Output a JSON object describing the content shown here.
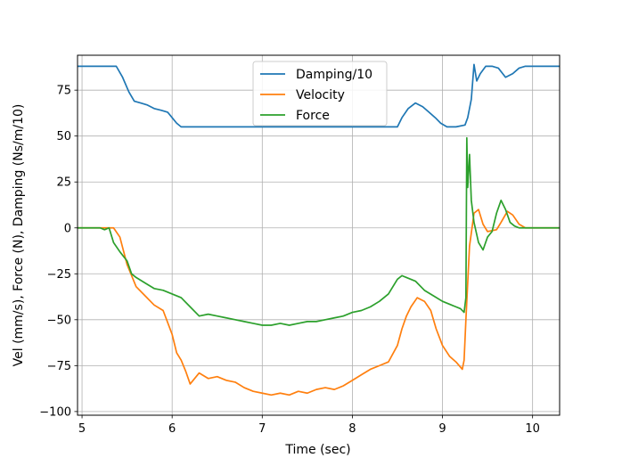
{
  "chart_data": {
    "type": "line",
    "xlabel": "Time (sec)",
    "ylabel": "Vel (mm/s), Force (N), Damping (Ns/m/10)",
    "xlim": [
      4.95,
      10.3
    ],
    "ylim": [
      -102,
      94
    ],
    "xticks": [
      5,
      6,
      7,
      8,
      9,
      10
    ],
    "yticks": [
      -100,
      -75,
      -50,
      -25,
      0,
      25,
      50,
      75
    ],
    "grid": true,
    "legend_position": "top-center",
    "series": [
      {
        "name": "Damping/10",
        "color": "#1f77b4",
        "points": [
          [
            4.95,
            88
          ],
          [
            5.1,
            88
          ],
          [
            5.25,
            88
          ],
          [
            5.38,
            88
          ],
          [
            5.45,
            82
          ],
          [
            5.52,
            74
          ],
          [
            5.58,
            69
          ],
          [
            5.65,
            68
          ],
          [
            5.72,
            67
          ],
          [
            5.8,
            65
          ],
          [
            5.88,
            64
          ],
          [
            5.95,
            63
          ],
          [
            6.0,
            60
          ],
          [
            6.05,
            57
          ],
          [
            6.1,
            55
          ],
          [
            6.2,
            55
          ],
          [
            6.5,
            55
          ],
          [
            7.0,
            55
          ],
          [
            7.5,
            55
          ],
          [
            8.0,
            55
          ],
          [
            8.3,
            55
          ],
          [
            8.5,
            55
          ],
          [
            8.55,
            60
          ],
          [
            8.62,
            65
          ],
          [
            8.7,
            68
          ],
          [
            8.78,
            66
          ],
          [
            8.85,
            63
          ],
          [
            8.92,
            60
          ],
          [
            8.98,
            57
          ],
          [
            9.05,
            55
          ],
          [
            9.15,
            55
          ],
          [
            9.25,
            56
          ],
          [
            9.28,
            60
          ],
          [
            9.32,
            70
          ],
          [
            9.35,
            89
          ],
          [
            9.38,
            80
          ],
          [
            9.42,
            84
          ],
          [
            9.48,
            88
          ],
          [
            9.55,
            88
          ],
          [
            9.62,
            87
          ],
          [
            9.7,
            82
          ],
          [
            9.78,
            84
          ],
          [
            9.85,
            87
          ],
          [
            9.92,
            88
          ],
          [
            10.3,
            88
          ]
        ]
      },
      {
        "name": "Velocity",
        "color": "#ff7f0e",
        "points": [
          [
            4.95,
            0
          ],
          [
            5.2,
            0
          ],
          [
            5.35,
            0
          ],
          [
            5.42,
            -5
          ],
          [
            5.5,
            -20
          ],
          [
            5.6,
            -32
          ],
          [
            5.7,
            -37
          ],
          [
            5.8,
            -42
          ],
          [
            5.9,
            -45
          ],
          [
            6.0,
            -58
          ],
          [
            6.05,
            -68
          ],
          [
            6.1,
            -72
          ],
          [
            6.15,
            -78
          ],
          [
            6.2,
            -85
          ],
          [
            6.3,
            -79
          ],
          [
            6.4,
            -82
          ],
          [
            6.5,
            -81
          ],
          [
            6.6,
            -83
          ],
          [
            6.7,
            -84
          ],
          [
            6.8,
            -87
          ],
          [
            6.9,
            -89
          ],
          [
            7.0,
            -90
          ],
          [
            7.1,
            -91
          ],
          [
            7.2,
            -90
          ],
          [
            7.3,
            -91
          ],
          [
            7.4,
            -89
          ],
          [
            7.5,
            -90
          ],
          [
            7.6,
            -88
          ],
          [
            7.7,
            -87
          ],
          [
            7.8,
            -88
          ],
          [
            7.9,
            -86
          ],
          [
            8.0,
            -83
          ],
          [
            8.1,
            -80
          ],
          [
            8.2,
            -77
          ],
          [
            8.3,
            -75
          ],
          [
            8.4,
            -73
          ],
          [
            8.5,
            -64
          ],
          [
            8.55,
            -55
          ],
          [
            8.6,
            -48
          ],
          [
            8.65,
            -43
          ],
          [
            8.72,
            -38
          ],
          [
            8.8,
            -40
          ],
          [
            8.87,
            -45
          ],
          [
            8.93,
            -55
          ],
          [
            9.0,
            -64
          ],
          [
            9.08,
            -70
          ],
          [
            9.15,
            -73
          ],
          [
            9.22,
            -77
          ],
          [
            9.24,
            -72
          ],
          [
            9.26,
            -50
          ],
          [
            9.3,
            -10
          ],
          [
            9.35,
            8
          ],
          [
            9.4,
            10
          ],
          [
            9.45,
            2
          ],
          [
            9.5,
            -2
          ],
          [
            9.6,
            -1
          ],
          [
            9.65,
            3
          ],
          [
            9.72,
            9
          ],
          [
            9.78,
            7
          ],
          [
            9.85,
            2
          ],
          [
            9.92,
            0
          ],
          [
            10.3,
            0
          ]
        ]
      },
      {
        "name": "Force",
        "color": "#2ca02c",
        "points": [
          [
            4.95,
            0
          ],
          [
            5.2,
            0
          ],
          [
            5.25,
            -1
          ],
          [
            5.3,
            0
          ],
          [
            5.35,
            -8
          ],
          [
            5.42,
            -13
          ],
          [
            5.5,
            -18
          ],
          [
            5.55,
            -25
          ],
          [
            5.6,
            -27
          ],
          [
            5.7,
            -30
          ],
          [
            5.8,
            -33
          ],
          [
            5.9,
            -34
          ],
          [
            6.0,
            -36
          ],
          [
            6.1,
            -38
          ],
          [
            6.2,
            -43
          ],
          [
            6.3,
            -48
          ],
          [
            6.4,
            -47
          ],
          [
            6.5,
            -48
          ],
          [
            6.6,
            -49
          ],
          [
            6.7,
            -50
          ],
          [
            6.8,
            -51
          ],
          [
            6.9,
            -52
          ],
          [
            7.0,
            -53
          ],
          [
            7.1,
            -53
          ],
          [
            7.2,
            -52
          ],
          [
            7.3,
            -53
          ],
          [
            7.4,
            -52
          ],
          [
            7.5,
            -51
          ],
          [
            7.6,
            -51
          ],
          [
            7.7,
            -50
          ],
          [
            7.8,
            -49
          ],
          [
            7.9,
            -48
          ],
          [
            8.0,
            -46
          ],
          [
            8.1,
            -45
          ],
          [
            8.2,
            -43
          ],
          [
            8.3,
            -40
          ],
          [
            8.4,
            -36
          ],
          [
            8.5,
            -28
          ],
          [
            8.55,
            -26
          ],
          [
            8.6,
            -27
          ],
          [
            8.7,
            -29
          ],
          [
            8.8,
            -34
          ],
          [
            8.9,
            -37
          ],
          [
            9.0,
            -40
          ],
          [
            9.1,
            -42
          ],
          [
            9.2,
            -44
          ],
          [
            9.24,
            -46
          ],
          [
            9.26,
            -38
          ],
          [
            9.27,
            49
          ],
          [
            9.28,
            22
          ],
          [
            9.3,
            40
          ],
          [
            9.32,
            15
          ],
          [
            9.35,
            3
          ],
          [
            9.4,
            -8
          ],
          [
            9.45,
            -12
          ],
          [
            9.5,
            -5
          ],
          [
            9.55,
            -2
          ],
          [
            9.6,
            8
          ],
          [
            9.65,
            15
          ],
          [
            9.7,
            10
          ],
          [
            9.75,
            3
          ],
          [
            9.8,
            1
          ],
          [
            9.85,
            0
          ],
          [
            10.3,
            0
          ]
        ]
      }
    ]
  }
}
